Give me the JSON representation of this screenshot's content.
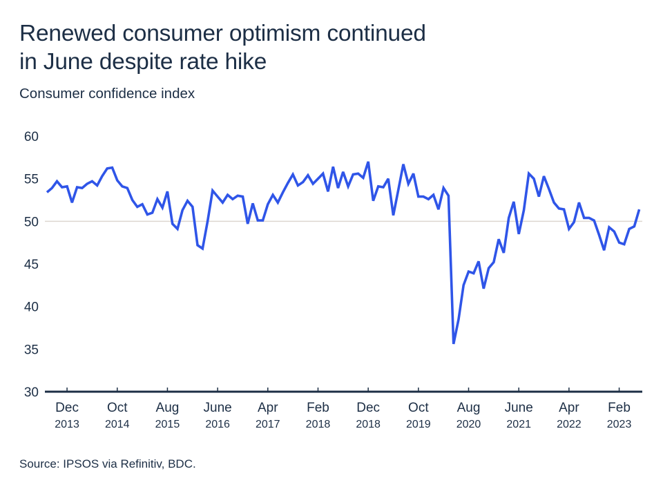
{
  "header": {
    "title_line1": "Renewed consumer optimism continued",
    "title_line2": "in June despite rate hike",
    "subtitle": "Consumer confidence index"
  },
  "footer": {
    "source": "Source: IPSOS via Refinitiv, BDC."
  },
  "colors": {
    "line": "#2f55e8",
    "text": "#1c2e45",
    "axis": "#1c2e45",
    "reference_line": "#ddd6cf"
  },
  "chart_data": {
    "type": "line",
    "title": "Renewed consumer optimism continued in June despite rate hike",
    "subtitle": "Consumer confidence index",
    "xlabel": "",
    "ylabel": "Consumer confidence index",
    "ylim": [
      30,
      60
    ],
    "yticks": [
      30,
      35,
      40,
      45,
      50,
      55,
      60
    ],
    "reference_line": 50,
    "grid": false,
    "legend": "none",
    "x_start": "2013-08",
    "x_end": "2023-06",
    "frequency": "monthly",
    "xticks": [
      {
        "month": "Dec",
        "year": "2013",
        "index": 4
      },
      {
        "month": "Oct",
        "year": "2014",
        "index": 14
      },
      {
        "month": "Aug",
        "year": "2015",
        "index": 24
      },
      {
        "month": "June",
        "year": "2016",
        "index": 34
      },
      {
        "month": "Apr",
        "year": "2017",
        "index": 44
      },
      {
        "month": "Feb",
        "year": "2018",
        "index": 54
      },
      {
        "month": "Dec",
        "year": "2018",
        "index": 64
      },
      {
        "month": "Oct",
        "year": "2019",
        "index": 74
      },
      {
        "month": "Aug",
        "year": "2020",
        "index": 84
      },
      {
        "month": "June",
        "year": "2021",
        "index": 94
      },
      {
        "month": "Apr",
        "year": "2022",
        "index": 104
      },
      {
        "month": "Feb",
        "year": "2023",
        "index": 114
      }
    ],
    "series": [
      {
        "name": "Consumer confidence index",
        "values": [
          53.4,
          53.9,
          54.7,
          54.0,
          54.1,
          52.2,
          54.0,
          53.9,
          54.4,
          54.7,
          54.2,
          55.3,
          56.2,
          56.3,
          54.8,
          54.1,
          53.9,
          52.5,
          51.7,
          52.0,
          50.8,
          51.0,
          52.6,
          51.6,
          53.5,
          49.7,
          49.1,
          51.3,
          52.4,
          51.7,
          47.2,
          46.8,
          50.0,
          53.6,
          52.9,
          52.2,
          53.1,
          52.6,
          53.0,
          52.9,
          49.7,
          52.1,
          50.1,
          50.1,
          52.0,
          53.1,
          52.2,
          53.4,
          54.5,
          55.5,
          54.2,
          54.6,
          55.4,
          54.4,
          55.0,
          55.6,
          53.5,
          56.4,
          53.9,
          55.8,
          54.1,
          55.5,
          55.6,
          55.1,
          57.0,
          52.4,
          54.1,
          54.0,
          55.0,
          50.7,
          53.7,
          56.7,
          54.4,
          55.6,
          52.9,
          52.9,
          52.6,
          53.1,
          51.4,
          53.9,
          53.0,
          35.6,
          38.5,
          42.5,
          44.1,
          43.9,
          45.3,
          42.1,
          44.5,
          45.2,
          47.9,
          46.3,
          50.4,
          52.3,
          48.5,
          51.3,
          55.6,
          55.0,
          52.9,
          55.3,
          53.8,
          52.2,
          51.5,
          51.4,
          49.1,
          49.9,
          52.2,
          50.4,
          50.4,
          50.1,
          48.4,
          46.6,
          49.3,
          48.8,
          47.5,
          47.3,
          49.1,
          49.4,
          51.4
        ]
      }
    ]
  }
}
